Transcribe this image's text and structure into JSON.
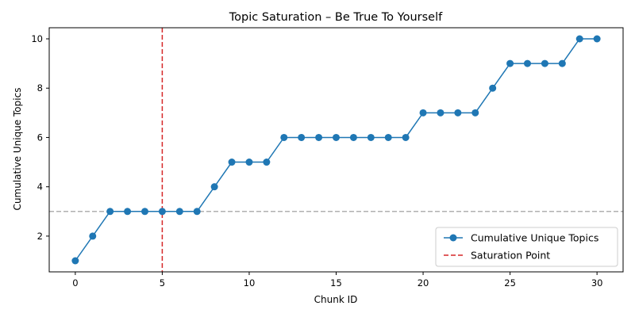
{
  "chart_data": {
    "type": "line",
    "title": "Topic Saturation – Be True To Yourself",
    "xlabel": "Chunk ID",
    "ylabel": "Cumulative Unique Topics",
    "xlim": [
      -1.5,
      31.5
    ],
    "ylim": [
      0.55,
      10.45
    ],
    "xticks": [
      0,
      5,
      10,
      15,
      20,
      25,
      30
    ],
    "yticks": [
      2,
      4,
      6,
      8,
      10
    ],
    "grid": false,
    "legend_position": "lower-right",
    "series": [
      {
        "name": "Cumulative Unique Topics",
        "color": "#1f77b4",
        "marker": "circle",
        "x": [
          0,
          1,
          2,
          3,
          4,
          5,
          6,
          7,
          8,
          9,
          10,
          11,
          12,
          13,
          14,
          15,
          16,
          17,
          18,
          19,
          20,
          21,
          22,
          23,
          24,
          25,
          26,
          27,
          28,
          29,
          30
        ],
        "values": [
          1,
          2,
          3,
          3,
          3,
          3,
          3,
          3,
          4,
          5,
          5,
          5,
          6,
          6,
          6,
          6,
          6,
          6,
          6,
          6,
          7,
          7,
          7,
          7,
          8,
          9,
          9,
          9,
          9,
          10,
          10
        ]
      }
    ],
    "reference_lines": [
      {
        "name": "Saturation Point",
        "orientation": "vertical",
        "value": 5,
        "color": "#d62728",
        "style": "dashed",
        "in_legend": true
      },
      {
        "orientation": "horizontal",
        "value": 3,
        "color": "#b0b0b0",
        "style": "dashed",
        "in_legend": false
      }
    ]
  }
}
